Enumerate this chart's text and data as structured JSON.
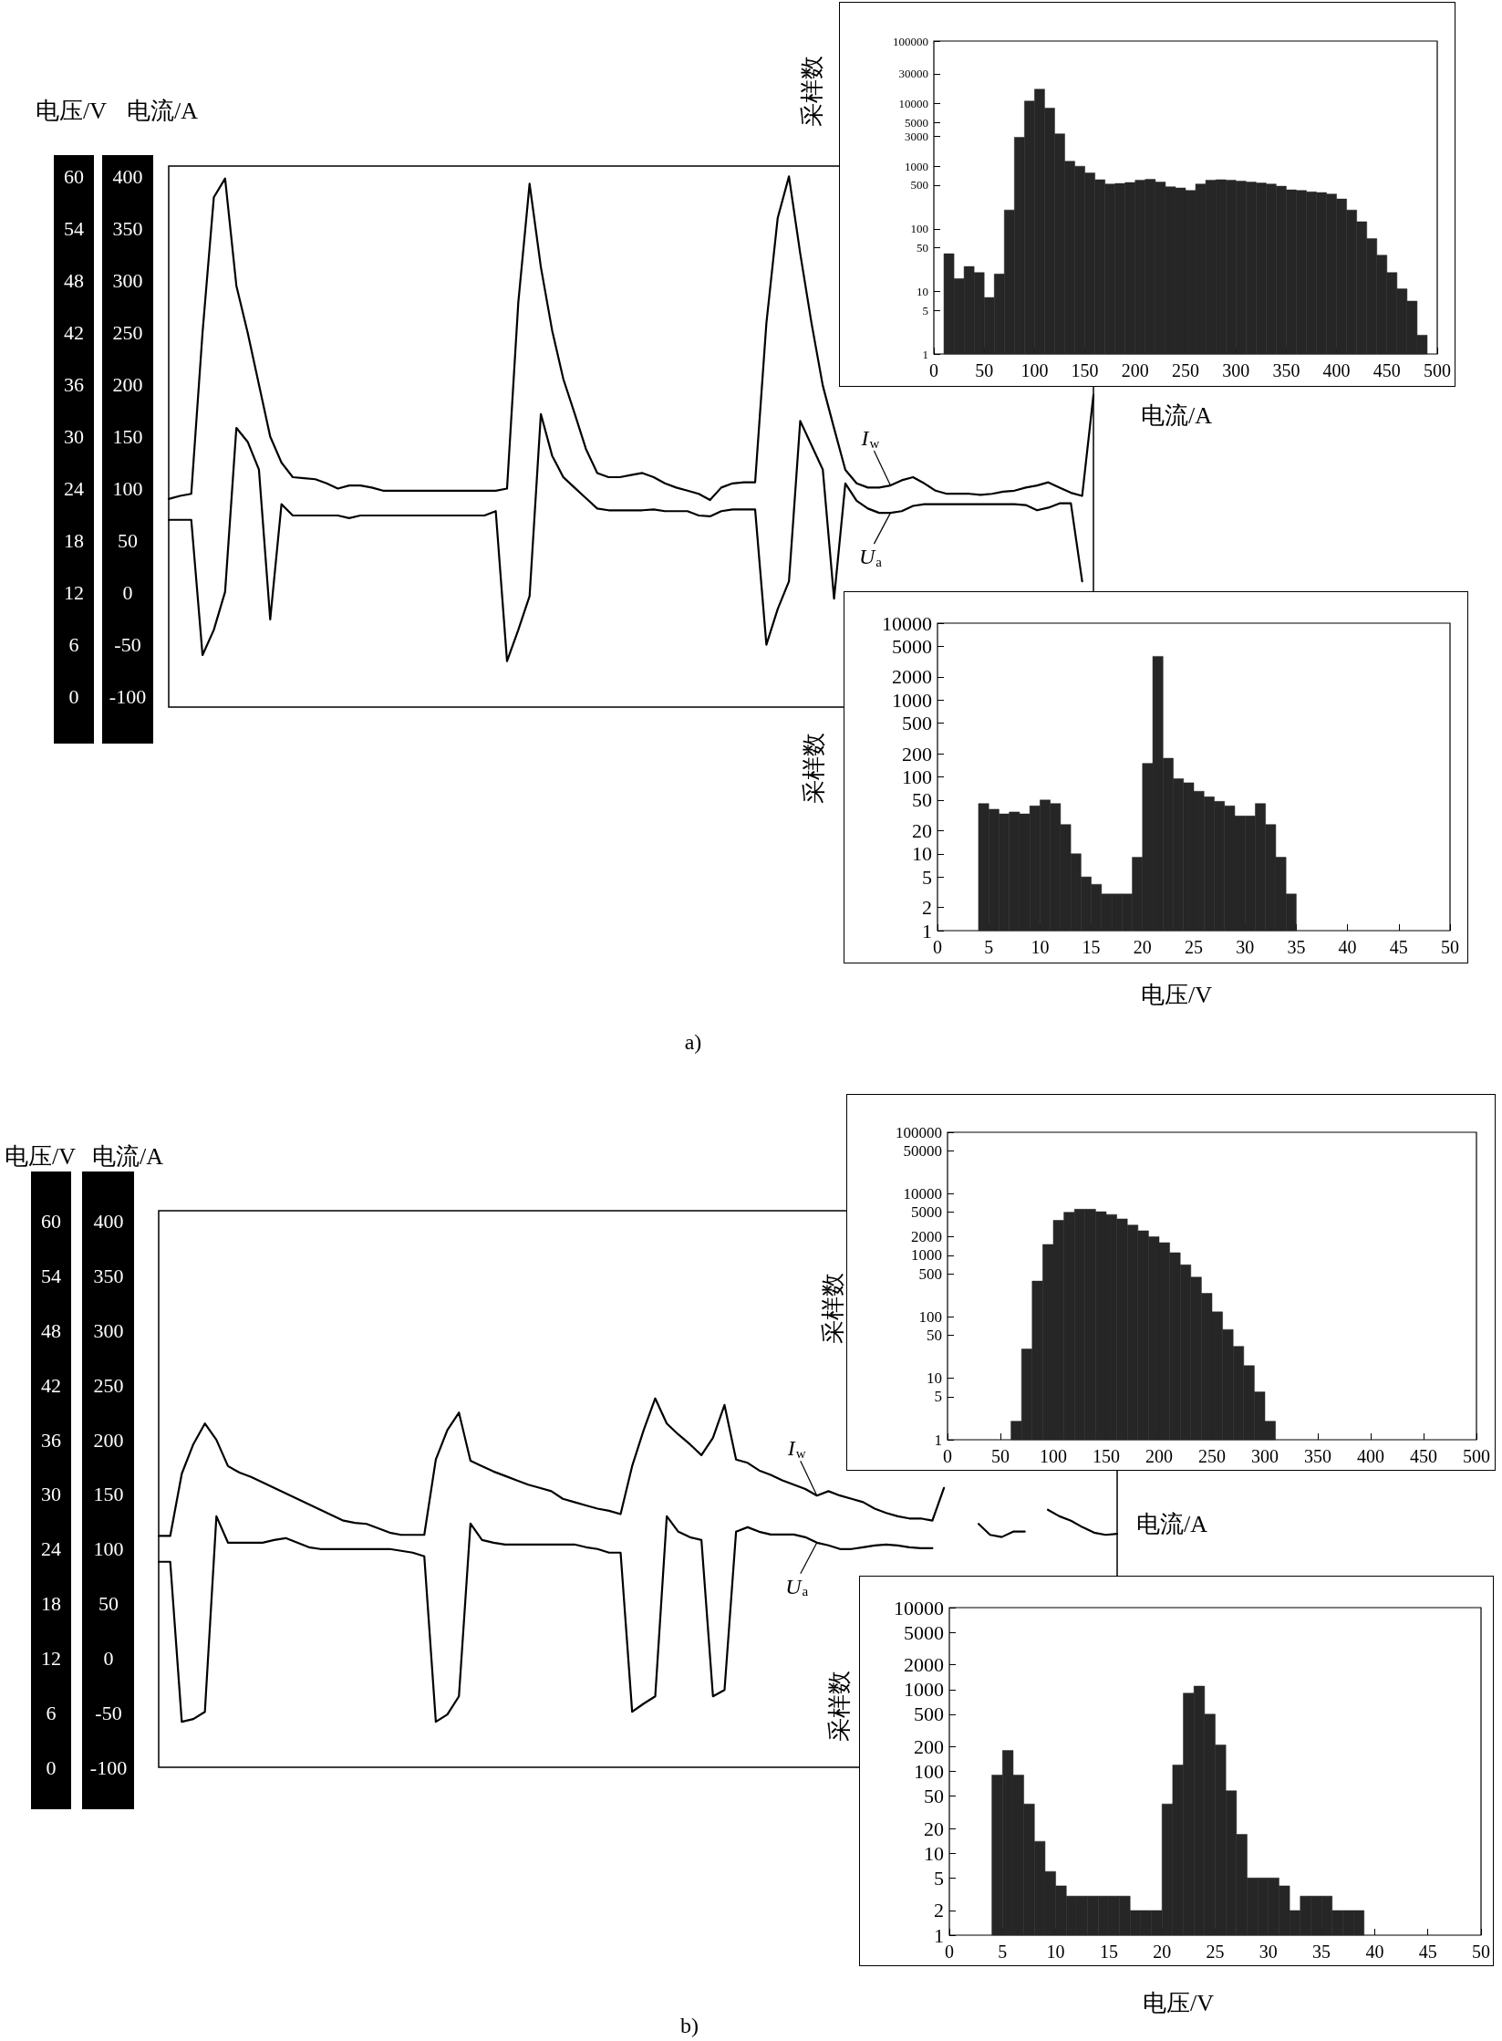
{
  "chart_data": [
    {
      "type": "line",
      "ylabel": "电压/V",
      "y2label": "电流/A",
      "annotations": [
        "a)"
      ],
      "marker": "none",
      "categories": [
        null,
        null,
        null,
        null,
        null,
        null,
        null,
        null,
        null,
        null,
        null,
        null,
        null,
        null,
        null,
        null,
        null,
        null,
        null,
        null,
        null,
        null,
        null,
        null,
        null,
        null,
        null,
        null,
        null,
        null,
        null,
        null,
        null,
        null,
        null,
        null,
        null,
        null,
        null,
        null,
        null,
        null,
        null,
        null,
        null,
        null,
        null,
        null,
        null,
        null,
        null,
        null,
        null,
        null,
        null,
        null,
        null,
        null,
        null,
        null,
        null,
        null,
        null,
        null,
        null,
        null,
        null,
        null,
        null,
        null,
        null,
        null,
        null,
        null,
        null,
        null,
        null,
        null,
        null,
        null,
        null,
        null,
        null
      ],
      "series": [
        {
          "name": "I$_{w}$",
          "color": "#000000",
          "axis": "y2",
          "values": [
            90,
            93,
            95,
            250,
            380,
            398,
            295,
            250,
            200,
            150,
            125,
            111,
            110,
            109,
            105,
            100,
            103,
            103,
            101,
            98,
            98,
            98,
            98,
            98,
            98,
            98,
            98,
            98,
            98,
            98,
            100,
            279,
            393,
            313,
            252,
            205,
            172,
            138,
            115,
            111,
            111,
            113,
            115,
            111,
            105,
            101,
            98,
            95,
            89,
            101,
            105,
            106,
            106,
            259,
            360,
            400,
            326,
            259,
            199,
            158,
            118,
            105,
            101,
            101,
            103,
            108,
            111,
            105,
            98,
            95,
            95,
            95,
            94,
            95,
            97,
            98,
            101,
            103,
            106,
            101,
            96,
            93,
            190
          ]
        },
        {
          "name": "U$_{a}$",
          "color": "#000000",
          "values": [
            20.4,
            20.4,
            20.4,
            4.8,
            7.7,
            12.1,
            31,
            29.4,
            26.2,
            8.9,
            22.2,
            20.9,
            20.9,
            20.9,
            20.9,
            20.9,
            20.6,
            20.9,
            20.9,
            20.9,
            20.9,
            20.9,
            20.9,
            20.9,
            20.9,
            20.9,
            20.9,
            20.9,
            20.9,
            21.4,
            4.1,
            7.7,
            11.6,
            32.6,
            27.8,
            25.3,
            24.1,
            22.9,
            21.7,
            21.5,
            21.5,
            21.5,
            21.5,
            21.6,
            21.4,
            21.4,
            21.4,
            20.9,
            20.8,
            21.4,
            21.6,
            21.6,
            21.6,
            6,
            10.1,
            13.3,
            31.8,
            29,
            26.2,
            11.3,
            24.6,
            22.6,
            21.7,
            21.2,
            21.2,
            21.4,
            22,
            22.2,
            22.2,
            22.2,
            22.2,
            22.2,
            22.2,
            22.2,
            22.2,
            22.2,
            22.1,
            21.5,
            21.8,
            22.3,
            22.3,
            13.3,
            null
          ]
        }
      ],
      "ylim": [
        -1.2,
        61.2
      ],
      "yticks": [
        0,
        6,
        12,
        18,
        24,
        30,
        36,
        42,
        48,
        54,
        60
      ],
      "y2lim": [
        -110,
        410
      ],
      "y2ticks": [
        -100,
        -50,
        0,
        50,
        100,
        150,
        200,
        250,
        300,
        350,
        400
      ]
    },
    {
      "type": "histogram",
      "xlabel": "电流/A",
      "ylabel": "采样数",
      "color": "#262626",
      "log": "y",
      "bins": [
        10,
        20,
        30,
        40,
        50,
        60,
        70,
        80,
        90,
        100,
        110,
        120,
        130,
        140,
        150,
        160,
        170,
        180,
        190,
        200,
        210,
        220,
        230,
        240,
        250,
        260,
        270,
        280,
        290,
        300,
        310,
        320,
        330,
        340,
        350,
        360,
        370,
        380,
        390,
        400,
        410,
        420,
        430,
        440,
        450,
        460,
        470,
        480,
        490
      ],
      "values": [
        40,
        16,
        25,
        20,
        8,
        19,
        200,
        2900,
        11000,
        17000,
        8500,
        3300,
        1200,
        1000,
        780,
        610,
        520,
        530,
        550,
        600,
        620,
        560,
        470,
        450,
        410,
        520,
        600,
        610,
        600,
        580,
        560,
        540,
        520,
        480,
        420,
        410,
        390,
        380,
        360,
        300,
        200,
        130,
        70,
        38,
        20,
        11,
        7,
        2
      ],
      "xlim": [
        0,
        500
      ],
      "xticks": [
        0,
        50,
        100,
        150,
        200,
        250,
        300,
        350,
        400,
        450,
        500
      ],
      "ylim": [
        1,
        100000
      ],
      "yticks": [
        1,
        5,
        10,
        50,
        100,
        500,
        1000,
        3000,
        5000,
        10000,
        30000,
        100000
      ]
    },
    {
      "type": "histogram",
      "xlabel": "电压/V",
      "ylabel": "采样数",
      "color": "#262626",
      "log": "y",
      "bins": [
        4,
        5,
        6,
        7,
        8,
        9,
        10,
        11,
        12,
        13,
        14,
        15,
        16,
        17,
        18,
        19,
        20,
        21,
        22,
        23,
        24,
        25,
        26,
        27,
        28,
        29,
        30,
        31,
        32,
        33,
        34,
        35
      ],
      "values": [
        45,
        38,
        33,
        35,
        33,
        42,
        50,
        45,
        24,
        10,
        5,
        4,
        3,
        3,
        3,
        9,
        150,
        3700,
        175,
        95,
        84,
        65,
        55,
        48,
        42,
        31,
        31,
        45,
        24,
        9,
        3
      ],
      "xlim": [
        0,
        50
      ],
      "xticks": [
        0,
        5,
        10,
        15,
        20,
        25,
        30,
        35,
        40,
        45,
        50
      ],
      "ylim": [
        1,
        10000
      ],
      "yticks": [
        1,
        2,
        5,
        10,
        20,
        50,
        100,
        200,
        500,
        1000,
        2000,
        5000,
        10000
      ]
    },
    {
      "type": "line",
      "ylabel": "电压/V",
      "y2label": "电流/A",
      "annotations": [
        "b)"
      ],
      "marker": "none",
      "categories": [
        null,
        null,
        null,
        null,
        null,
        null,
        null,
        null,
        null,
        null,
        null,
        null,
        null,
        null,
        null,
        null,
        null,
        null,
        null,
        null,
        null,
        null,
        null,
        null,
        null,
        null,
        null,
        null,
        null,
        null,
        null,
        null,
        null,
        null,
        null,
        null,
        null,
        null,
        null,
        null,
        null,
        null,
        null,
        null,
        null,
        null,
        null,
        null,
        null,
        null,
        null,
        null,
        null,
        null,
        null,
        null,
        null,
        null,
        null,
        null,
        null,
        null,
        null,
        null,
        null,
        null,
        null,
        null,
        null,
        null,
        null,
        null,
        null,
        null,
        null,
        null,
        null,
        null,
        null,
        null,
        null,
        null,
        null,
        null
      ],
      "series": [
        {
          "name": "I$_{w}$",
          "color": "#000000",
          "axis": "y2",
          "values": [
            112,
            112,
            169,
            196,
            215,
            200,
            176,
            170,
            166,
            161,
            156,
            151,
            146,
            141,
            136,
            131,
            126,
            124,
            123,
            119,
            115,
            113,
            113,
            113,
            182,
            209,
            225,
            181,
            176,
            171,
            167,
            163,
            159,
            156,
            153,
            146,
            143,
            140,
            137,
            135,
            132,
            176,
            209,
            238,
            215,
            205,
            196,
            186,
            202,
            232,
            182,
            179,
            172,
            168,
            163,
            159,
            155,
            149,
            153,
            149,
            146,
            143,
            137,
            133,
            130,
            128,
            128,
            126,
            156,
            null,
            null,
            null,
            null,
            null,
            null,
            null,
            null,
            null,
            null,
            null,
            null,
            null,
            null,
            null
          ]
        },
        {
          "color": "#000000",
          "axis": "y2",
          "values": [
            null,
            null,
            null,
            null,
            null,
            null,
            null,
            null,
            null,
            null,
            null,
            null,
            null,
            null,
            null,
            null,
            null,
            null,
            null,
            null,
            null,
            null,
            null,
            null,
            null,
            null,
            null,
            null,
            null,
            null,
            null,
            null,
            null,
            null,
            null,
            null,
            null,
            null,
            null,
            null,
            null,
            null,
            null,
            null,
            null,
            null,
            null,
            null,
            null,
            null,
            null,
            null,
            null,
            null,
            null,
            null,
            null,
            null,
            null,
            null,
            null,
            null,
            null,
            null,
            null,
            null,
            null,
            null,
            null,
            null,
            null,
            123,
            113,
            111,
            116,
            116,
            null,
            null,
            null,
            null,
            null,
            null,
            null,
            null
          ]
        },
        {
          "color": "#000000",
          "axis": "y2",
          "values": [
            null,
            null,
            null,
            null,
            null,
            null,
            null,
            null,
            null,
            null,
            null,
            null,
            null,
            null,
            null,
            null,
            null,
            null,
            null,
            null,
            null,
            null,
            null,
            null,
            null,
            null,
            null,
            null,
            null,
            null,
            null,
            null,
            null,
            null,
            null,
            null,
            null,
            null,
            null,
            null,
            null,
            null,
            null,
            null,
            null,
            null,
            null,
            null,
            null,
            null,
            null,
            null,
            null,
            null,
            null,
            null,
            null,
            null,
            null,
            null,
            null,
            null,
            null,
            null,
            null,
            null,
            null,
            null,
            null,
            null,
            null,
            null,
            null,
            null,
            null,
            null,
            null,
            136,
            130,
            126,
            120,
            115,
            113,
            114
          ]
        },
        {
          "name": "U$_{a}$",
          "color": "#000000",
          "values": [
            22.6,
            22.6,
            5,
            5.3,
            6.1,
            27.6,
            24.7,
            24.7,
            24.7,
            24.7,
            25,
            25.2,
            24.7,
            24.2,
            24,
            24,
            24,
            24,
            24,
            24,
            24,
            23.8,
            23.6,
            23.2,
            5,
            5.8,
            7.8,
            26.8,
            25,
            24.7,
            24.5,
            24.5,
            24.5,
            24.5,
            24.5,
            24.5,
            24.5,
            24.2,
            24,
            23.6,
            23.6,
            6.1,
            7,
            7.8,
            27.6,
            25.9,
            25.3,
            25,
            7.8,
            8.5,
            25.9,
            26.4,
            25.9,
            25.6,
            25.6,
            25.6,
            25.3,
            24.7,
            24.4,
            24,
            24,
            24.2,
            24.4,
            24.5,
            24.4,
            24.2,
            24.1,
            24.1,
            null,
            null,
            null,
            null,
            null,
            null,
            null,
            null,
            null,
            null,
            null,
            null,
            null,
            null,
            null,
            null
          ]
        }
      ],
      "ylim": [
        0,
        61.2
      ],
      "yticks": [
        0,
        6,
        12,
        18,
        24,
        30,
        36,
        42,
        48,
        54,
        60
      ],
      "y2lim": [
        -100,
        410
      ],
      "y2ticks": [
        -100,
        -50,
        0,
        50,
        100,
        150,
        200,
        250,
        300,
        350,
        400
      ]
    },
    {
      "type": "histogram",
      "xlabel": "电流/A",
      "ylabel": "采样数",
      "color": "#262626",
      "log": "y",
      "bins": [
        60,
        70,
        80,
        90,
        100,
        110,
        120,
        130,
        140,
        150,
        160,
        170,
        180,
        190,
        200,
        210,
        220,
        230,
        240,
        250,
        260,
        270,
        280,
        290,
        300,
        310
      ],
      "values": [
        2,
        30,
        380,
        1500,
        3700,
        5000,
        5600,
        5600,
        5100,
        4600,
        3900,
        3100,
        2500,
        2000,
        1600,
        1100,
        700,
        440,
        240,
        120,
        62,
        33,
        16,
        6,
        2
      ],
      "xlim": [
        0,
        500
      ],
      "xticks": [
        0,
        50,
        100,
        150,
        200,
        250,
        300,
        350,
        400,
        450,
        500
      ],
      "ylim": [
        1,
        100000
      ],
      "yticks": [
        1,
        5,
        10,
        50,
        100,
        500,
        1000,
        2000,
        5000,
        10000,
        50000,
        100000
      ]
    },
    {
      "type": "histogram",
      "xlabel": "电压/V",
      "ylabel": "采样数",
      "color": "#262626",
      "log": "y",
      "bins": [
        4,
        5,
        6,
        7,
        8,
        9,
        10,
        11,
        12,
        13,
        14,
        15,
        16,
        17,
        18,
        19,
        20,
        21,
        22,
        23,
        24,
        25,
        26,
        27,
        28,
        29,
        30,
        31,
        32,
        33,
        34,
        35,
        36,
        37,
        38,
        39
      ],
      "values": [
        90,
        180,
        90,
        40,
        14,
        6,
        4,
        3,
        3,
        3,
        3,
        3,
        3,
        2,
        2,
        2,
        40,
        120,
        900,
        1100,
        500,
        210,
        58,
        17,
        5,
        5,
        5,
        4,
        2,
        3,
        3,
        3,
        2,
        2,
        2
      ],
      "xlim": [
        0,
        50
      ],
      "xticks": [
        0,
        5,
        10,
        15,
        20,
        25,
        30,
        35,
        40,
        45,
        50
      ],
      "ylim": [
        1,
        10000
      ],
      "yticks": [
        1,
        2,
        5,
        10,
        20,
        50,
        100,
        200,
        500,
        1000,
        2000,
        5000,
        10000
      ]
    }
  ]
}
